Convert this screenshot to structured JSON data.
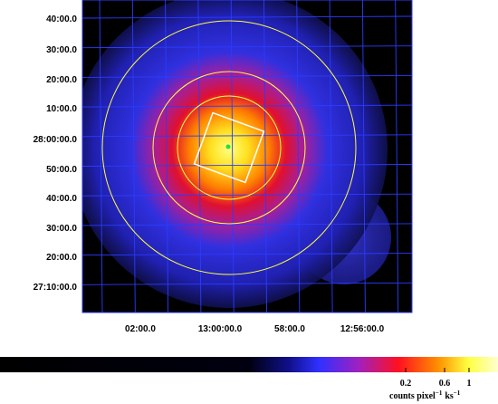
{
  "image": {
    "y_labels": [
      "40:00.0",
      "30:00.0",
      "20:00.0",
      "10:00.0",
      "28:00:00.0",
      "50:00.0",
      "40:00.0",
      "30:00.0",
      "20:00.0",
      "27:10:00.0"
    ],
    "x_labels": [
      "02:00.0",
      "13:00:00.0",
      "58:00.0",
      "12:56:00.0"
    ],
    "colorbar": {
      "ticks": [
        "0.2",
        "0.6",
        "1"
      ],
      "label": {
        "base": "counts pixel",
        "exp1": "−1",
        "unit": "ks",
        "exp2": "−1"
      }
    }
  }
}
